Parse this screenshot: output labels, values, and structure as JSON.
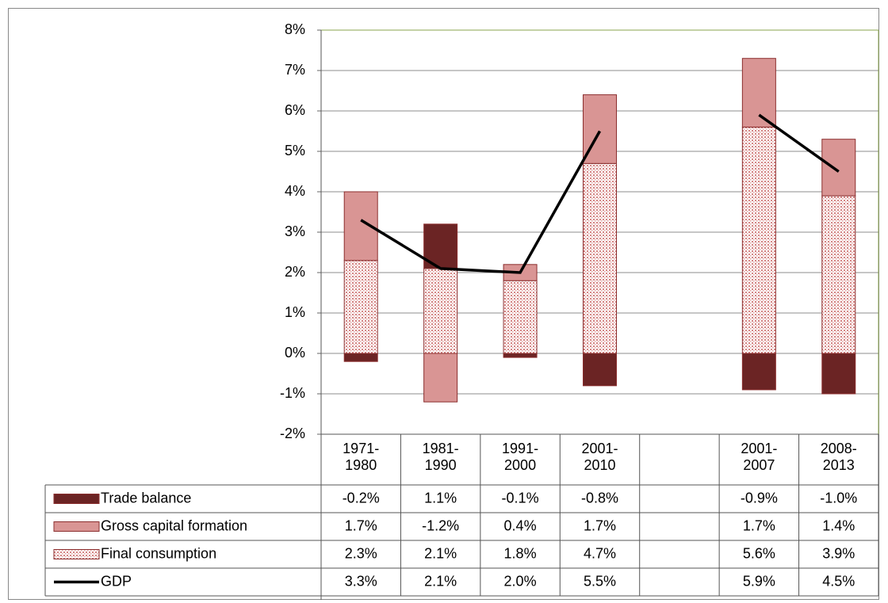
{
  "chart_data": {
    "type": "bar",
    "stacked": true,
    "categories": [
      "1971-1980",
      "1981-1990",
      "1991-2000",
      "2001-2010",
      null,
      "2001-2007",
      "2008-2013"
    ],
    "series": [
      {
        "name": "Trade balance",
        "color": "#6b2424",
        "values": [
          -0.2,
          1.1,
          -0.1,
          -0.8,
          null,
          -0.9,
          -1.0
        ],
        "value_labels": [
          "-0.2%",
          "1.1%",
          "-0.1%",
          "-0.8%",
          null,
          "-0.9%",
          "-1.0%"
        ]
      },
      {
        "name": "Gross capital formation",
        "color": "#d99594",
        "values": [
          1.7,
          -1.2,
          0.4,
          1.7,
          null,
          1.7,
          1.4
        ],
        "value_labels": [
          "1.7%",
          "-1.2%",
          "0.4%",
          "1.7%",
          null,
          "1.7%",
          "1.4%"
        ]
      },
      {
        "name": "Final consumption",
        "color": "#e6a9a8",
        "pattern": "dotted",
        "values": [
          2.3,
          2.1,
          1.8,
          4.7,
          null,
          5.6,
          3.9
        ],
        "value_labels": [
          "2.3%",
          "2.1%",
          "1.8%",
          "4.7%",
          null,
          "5.6%",
          "3.9%"
        ]
      },
      {
        "name": "GDP",
        "type": "line",
        "color": "#000000",
        "values": [
          3.3,
          2.1,
          2.0,
          5.5,
          null,
          5.9,
          4.5
        ],
        "value_labels": [
          "3.3%",
          "2.1%",
          "2.0%",
          "5.5%",
          null,
          "5.9%",
          "4.5%"
        ]
      }
    ],
    "ylim": [
      -2,
      8
    ],
    "yticks": [
      {
        "value": -2,
        "label": "-2%"
      },
      {
        "value": -1,
        "label": "-1%"
      },
      {
        "value": 0,
        "label": "0%"
      },
      {
        "value": 1,
        "label": "1%"
      },
      {
        "value": 2,
        "label": "2%"
      },
      {
        "value": 3,
        "label": "3%"
      },
      {
        "value": 4,
        "label": "4%"
      },
      {
        "value": 5,
        "label": "5%"
      },
      {
        "value": 6,
        "label": "6%"
      },
      {
        "value": 7,
        "label": "7%"
      },
      {
        "value": 8,
        "label": "8%"
      }
    ],
    "grid": true,
    "legend": "table"
  }
}
